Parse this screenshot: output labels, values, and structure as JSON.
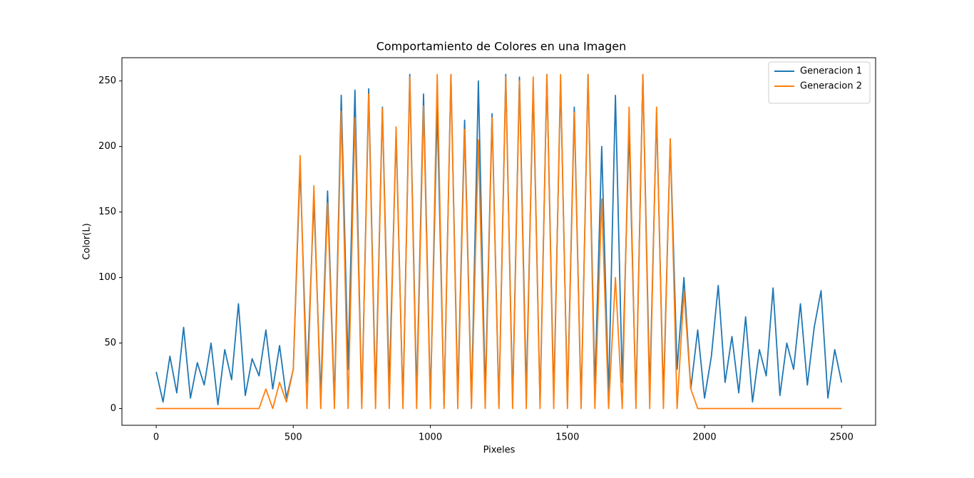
{
  "chart_data": {
    "type": "line",
    "title": "Comportamiento de Colores en una Imagen",
    "xlabel": "Pixeles",
    "ylabel": "Color(L)",
    "x": [
      0,
      25,
      50,
      75,
      100,
      125,
      150,
      175,
      200,
      225,
      250,
      275,
      300,
      325,
      350,
      375,
      400,
      425,
      450,
      475,
      500,
      525,
      550,
      575,
      600,
      625,
      650,
      675,
      700,
      725,
      750,
      775,
      800,
      825,
      850,
      875,
      900,
      925,
      950,
      975,
      1000,
      1025,
      1050,
      1075,
      1100,
      1125,
      1150,
      1175,
      1200,
      1225,
      1250,
      1275,
      1300,
      1325,
      1350,
      1375,
      1400,
      1425,
      1450,
      1475,
      1500,
      1525,
      1550,
      1575,
      1600,
      1625,
      1650,
      1675,
      1700,
      1725,
      1750,
      1775,
      1800,
      1825,
      1850,
      1875,
      1900,
      1925,
      1950,
      1975,
      2000,
      2025,
      2050,
      2075,
      2100,
      2125,
      2150,
      2175,
      2200,
      2225,
      2250,
      2275,
      2300,
      2325,
      2350,
      2375,
      2400,
      2425,
      2450,
      2475,
      2500
    ],
    "series": [
      {
        "name": "Generacion 1",
        "color": "#1f77b4",
        "values": [
          28,
          5,
          40,
          12,
          62,
          8,
          35,
          18,
          50,
          3,
          45,
          22,
          80,
          10,
          38,
          25,
          60,
          15,
          48,
          8,
          30,
          185,
          20,
          160,
          10,
          166,
          5,
          239,
          30,
          243,
          2,
          244,
          8,
          230,
          15,
          210,
          3,
          255,
          10,
          240,
          5,
          230,
          2,
          255,
          8,
          220,
          3,
          250,
          10,
          225,
          2,
          255,
          5,
          253,
          12,
          245,
          3,
          255,
          8,
          250,
          5,
          230,
          2,
          255,
          15,
          200,
          10,
          239,
          20,
          213,
          5,
          255,
          12,
          225,
          8,
          205,
          30,
          100,
          15,
          60,
          8,
          40,
          94,
          20,
          55,
          12,
          70,
          5,
          45,
          25,
          92,
          10,
          50,
          30,
          80,
          18,
          62,
          90,
          8,
          45,
          20
        ]
      },
      {
        "name": "Generacion 2",
        "color": "#ff7f0e",
        "values": [
          0,
          0,
          0,
          0,
          0,
          0,
          0,
          0,
          0,
          0,
          0,
          0,
          0,
          0,
          0,
          0,
          15,
          0,
          20,
          5,
          30,
          193,
          0,
          170,
          0,
          157,
          0,
          227,
          0,
          222,
          0,
          240,
          0,
          229,
          0,
          215,
          0,
          253,
          0,
          231,
          0,
          255,
          0,
          255,
          0,
          213,
          0,
          205,
          0,
          222,
          0,
          253,
          0,
          250,
          0,
          253,
          0,
          255,
          0,
          255,
          0,
          226,
          0,
          255,
          0,
          160,
          0,
          100,
          0,
          230,
          0,
          255,
          0,
          230,
          0,
          206,
          0,
          90,
          15,
          0,
          0,
          0,
          0,
          0,
          0,
          0,
          0,
          0,
          0,
          0,
          0,
          0,
          0,
          0,
          0,
          0,
          0,
          0,
          0,
          0,
          0
        ]
      }
    ],
    "xlim": [
      -125,
      2624
    ],
    "ylim": [
      -12.75,
      267.75
    ],
    "xticks": [
      0,
      500,
      1000,
      1500,
      2000,
      2500
    ],
    "yticks": [
      0,
      50,
      100,
      150,
      200,
      250
    ],
    "legend": "upper right"
  }
}
